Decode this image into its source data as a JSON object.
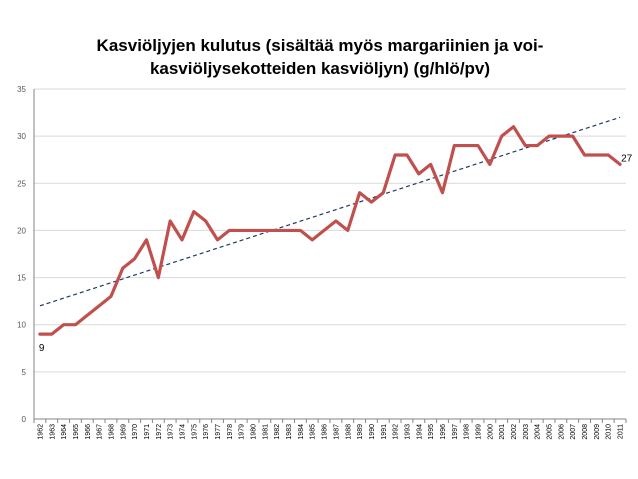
{
  "chart_data": {
    "type": "line",
    "title_lines": [
      "Kasviöljyjen kulutus (sisältää myös margariinien ja voi-",
      "kasviöljysekotteiden kasviöljyn) (g/hlö/pv)"
    ],
    "x": [
      "1962",
      "1963",
      "1964",
      "1965",
      "1966",
      "1967",
      "1968",
      "1969",
      "1970",
      "1971",
      "1972",
      "1973",
      "1974",
      "1975",
      "1976",
      "1977",
      "1978",
      "1979",
      "1980",
      "1981",
      "1982",
      "1983",
      "1984",
      "1985",
      "1986",
      "1987",
      "1988",
      "1989",
      "1990",
      "1991",
      "1992",
      "1993",
      "1994",
      "1995",
      "1996",
      "1997",
      "1998",
      "1999",
      "2000",
      "2001",
      "2002",
      "2003",
      "2004",
      "2005",
      "2006",
      "2007",
      "2008",
      "2009",
      "2010",
      "2011"
    ],
    "series": [
      {
        "values": [
          9,
          9,
          10,
          10,
          11,
          12,
          13,
          16,
          17,
          19,
          15,
          21,
          19,
          22,
          21,
          19,
          20,
          20,
          20,
          20,
          20,
          20,
          20,
          19,
          20,
          21,
          20,
          24,
          23,
          24,
          28,
          28,
          26,
          27,
          24,
          29,
          29,
          29,
          27,
          30,
          31,
          29,
          29,
          30,
          30,
          30,
          28,
          28,
          28,
          27
        ],
        "color": "#c0504d"
      }
    ],
    "trendline": {
      "type": "linear",
      "start": 12,
      "end": 32,
      "color": "#1f3864",
      "style": "dashed"
    },
    "data_labels": [
      {
        "index": 0,
        "text": "9"
      },
      {
        "index": 49,
        "text": "27"
      }
    ],
    "yticks": [
      "0",
      "5",
      "10",
      "15",
      "20",
      "25",
      "30",
      "35"
    ],
    "ylim": [
      0,
      35
    ],
    "grid": true,
    "legend": "none"
  }
}
